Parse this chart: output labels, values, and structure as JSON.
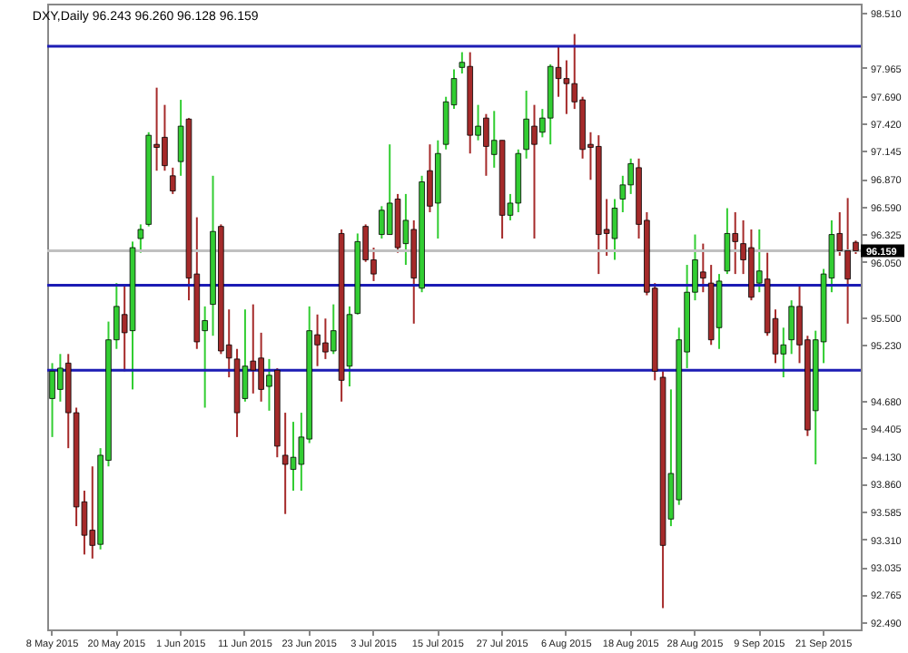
{
  "chart_data": {
    "type": "candlestick",
    "title": "DXY,Daily  96.243 96.260 96.128 96.159",
    "categories": [
      "8 May 2015",
      null,
      null,
      null,
      null,
      null,
      null,
      null,
      "20 May 2015",
      null,
      null,
      null,
      null,
      null,
      null,
      null,
      "1 Jun 2015",
      null,
      null,
      null,
      null,
      null,
      null,
      null,
      "11 Jun 2015",
      null,
      null,
      null,
      null,
      null,
      null,
      null,
      "23 Jun 2015",
      null,
      null,
      null,
      null,
      null,
      null,
      null,
      "3 Jul 2015",
      null,
      null,
      null,
      null,
      null,
      null,
      null,
      "15 Jul 2015",
      null,
      null,
      null,
      null,
      null,
      null,
      null,
      "27 Jul 2015",
      null,
      null,
      null,
      null,
      null,
      null,
      null,
      "6 Aug 2015",
      null,
      null,
      null,
      null,
      null,
      null,
      null,
      "18 Aug 2015",
      null,
      null,
      null,
      null,
      null,
      null,
      null,
      "28 Aug 2015",
      null,
      null,
      null,
      null,
      null,
      null,
      null,
      "9 Sep 2015",
      null,
      null,
      null,
      null,
      null,
      null,
      null,
      "21 Sep 2015",
      null,
      null,
      null,
      null
    ],
    "ohlc": [
      [
        94.7,
        95.05,
        94.32,
        94.97
      ],
      [
        94.79,
        95.14,
        94.67,
        95.0
      ],
      [
        95.05,
        95.14,
        94.21,
        94.56
      ],
      [
        94.56,
        94.61,
        93.44,
        93.63
      ],
      [
        93.68,
        93.79,
        93.16,
        93.35
      ],
      [
        93.4,
        94.03,
        93.12,
        93.25
      ],
      [
        93.26,
        94.21,
        93.21,
        94.14
      ],
      [
        94.09,
        95.46,
        94.03,
        95.28
      ],
      [
        95.28,
        95.84,
        95.19,
        95.61
      ],
      [
        95.53,
        95.81,
        94.97,
        95.35
      ],
      [
        95.37,
        96.25,
        94.79,
        96.19
      ],
      [
        96.28,
        96.42,
        96.14,
        96.37
      ],
      [
        96.42,
        97.33,
        96.4,
        97.3
      ],
      [
        97.21,
        97.77,
        96.95,
        97.18
      ],
      [
        97.28,
        97.6,
        96.95,
        97.0
      ],
      [
        96.9,
        96.98,
        96.72,
        96.75
      ],
      [
        97.04,
        97.65,
        96.9,
        97.39
      ],
      [
        97.46,
        97.47,
        95.67,
        95.89
      ],
      [
        95.93,
        96.49,
        95.19,
        95.26
      ],
      [
        95.37,
        95.61,
        94.61,
        95.47
      ],
      [
        95.63,
        96.9,
        95.32,
        96.35
      ],
      [
        96.4,
        96.42,
        95.14,
        95.17
      ],
      [
        95.23,
        95.58,
        94.91,
        95.1
      ],
      [
        95.09,
        95.19,
        94.32,
        94.56
      ],
      [
        94.7,
        95.58,
        94.67,
        95.02
      ],
      [
        95.07,
        95.63,
        94.75,
        94.98
      ],
      [
        95.1,
        95.35,
        94.67,
        94.79
      ],
      [
        94.82,
        95.09,
        94.58,
        94.93
      ],
      [
        94.98,
        95.0,
        94.12,
        94.23
      ],
      [
        94.14,
        94.56,
        93.56,
        94.05
      ],
      [
        94.0,
        94.47,
        93.79,
        94.12
      ],
      [
        94.05,
        94.56,
        93.79,
        94.32
      ],
      [
        94.3,
        95.61,
        94.26,
        95.37
      ],
      [
        95.33,
        95.53,
        95.02,
        95.23
      ],
      [
        95.25,
        95.49,
        95.09,
        95.16
      ],
      [
        95.17,
        95.63,
        95.14,
        95.37
      ],
      [
        96.33,
        96.37,
        94.67,
        94.88
      ],
      [
        95.02,
        95.61,
        94.82,
        95.53
      ],
      [
        95.54,
        96.33,
        95.53,
        96.25
      ],
      [
        96.4,
        96.42,
        96.05,
        96.07
      ],
      [
        96.07,
        96.19,
        95.86,
        95.93
      ],
      [
        96.32,
        96.6,
        96.28,
        96.56
      ],
      [
        96.32,
        97.21,
        96.32,
        96.63
      ],
      [
        96.67,
        96.72,
        96.14,
        96.19
      ],
      [
        96.23,
        96.72,
        96.02,
        96.46
      ],
      [
        96.37,
        96.46,
        95.44,
        95.89
      ],
      [
        95.79,
        96.9,
        95.75,
        96.84
      ],
      [
        96.95,
        97.21,
        96.54,
        96.6
      ],
      [
        96.63,
        97.25,
        96.28,
        97.12
      ],
      [
        97.21,
        97.68,
        97.16,
        97.63
      ],
      [
        97.6,
        97.95,
        97.56,
        97.86
      ],
      [
        97.97,
        98.12,
        97.91,
        98.02
      ],
      [
        97.98,
        98.12,
        97.12,
        97.3
      ],
      [
        97.3,
        97.6,
        97.25,
        97.39
      ],
      [
        97.47,
        97.51,
        96.9,
        97.19
      ],
      [
        97.11,
        97.54,
        96.98,
        97.25
      ],
      [
        97.25,
        97.25,
        96.28,
        96.51
      ],
      [
        96.51,
        96.72,
        96.46,
        96.63
      ],
      [
        96.63,
        97.16,
        96.54,
        97.12
      ],
      [
        97.16,
        97.74,
        97.07,
        97.46
      ],
      [
        97.39,
        97.6,
        96.28,
        97.21
      ],
      [
        97.33,
        97.56,
        97.28,
        97.47
      ],
      [
        97.47,
        98.0,
        97.21,
        97.98
      ],
      [
        97.97,
        98.18,
        97.68,
        97.86
      ],
      [
        97.86,
        98.04,
        97.51,
        97.81
      ],
      [
        97.81,
        98.3,
        97.56,
        97.63
      ],
      [
        97.65,
        97.68,
        97.07,
        97.16
      ],
      [
        97.21,
        97.33,
        96.86,
        97.18
      ],
      [
        97.19,
        97.3,
        95.93,
        96.32
      ],
      [
        96.37,
        96.67,
        96.11,
        96.33
      ],
      [
        96.28,
        96.67,
        96.07,
        96.58
      ],
      [
        96.67,
        96.9,
        96.54,
        96.81
      ],
      [
        96.81,
        97.07,
        96.72,
        97.02
      ],
      [
        96.98,
        97.07,
        96.28,
        96.42
      ],
      [
        96.46,
        96.54,
        95.72,
        95.75
      ],
      [
        95.79,
        95.84,
        94.88,
        94.97
      ],
      [
        94.91,
        94.97,
        92.63,
        93.25
      ],
      [
        93.51,
        94.79,
        93.44,
        93.96
      ],
      [
        93.7,
        95.4,
        93.65,
        95.28
      ],
      [
        95.16,
        96.02,
        95.0,
        95.75
      ],
      [
        95.75,
        96.32,
        95.67,
        96.07
      ],
      [
        95.95,
        96.23,
        95.75,
        95.89
      ],
      [
        95.84,
        96.02,
        95.23,
        95.28
      ],
      [
        95.4,
        95.93,
        95.19,
        95.86
      ],
      [
        95.96,
        96.58,
        95.93,
        96.33
      ],
      [
        96.33,
        96.54,
        95.93,
        96.25
      ],
      [
        96.23,
        96.46,
        95.93,
        96.07
      ],
      [
        96.19,
        96.37,
        95.67,
        95.7
      ],
      [
        95.84,
        96.37,
        95.75,
        95.96
      ],
      [
        95.88,
        96.14,
        95.32,
        95.35
      ],
      [
        95.49,
        95.58,
        95.05,
        95.14
      ],
      [
        95.14,
        95.4,
        94.91,
        95.23
      ],
      [
        95.28,
        95.67,
        95.14,
        95.61
      ],
      [
        95.61,
        95.81,
        95.05,
        95.23
      ],
      [
        95.28,
        95.32,
        94.33,
        94.39
      ],
      [
        94.58,
        95.37,
        94.05,
        95.28
      ],
      [
        95.26,
        95.98,
        95.05,
        95.93
      ],
      [
        95.89,
        96.46,
        95.75,
        96.32
      ],
      [
        96.33,
        96.54,
        96.11,
        96.16
      ],
      [
        96.16,
        96.68,
        95.44,
        95.88
      ],
      [
        96.243,
        96.26,
        96.128,
        96.159
      ]
    ],
    "colors": [
      "#32cd32",
      "#32cd32",
      "#a52a2a",
      "#a52a2a",
      "#a52a2a",
      "#a52a2a",
      "#32cd32",
      "#32cd32",
      "#32cd32",
      "#a52a2a",
      "#32cd32",
      "#32cd32",
      "#32cd32",
      "#a52a2a",
      "#a52a2a",
      "#a52a2a",
      "#32cd32",
      "#a52a2a",
      "#a52a2a",
      "#32cd32",
      "#32cd32",
      "#a52a2a",
      "#a52a2a",
      "#a52a2a",
      "#32cd32",
      "#a52a2a",
      "#a52a2a",
      "#32cd32",
      "#a52a2a",
      "#a52a2a",
      "#32cd32",
      "#32cd32",
      "#32cd32",
      "#a52a2a",
      "#a52a2a",
      "#32cd32",
      "#a52a2a",
      "#32cd32",
      "#32cd32",
      "#a52a2a",
      "#a52a2a",
      "#32cd32",
      "#32cd32",
      "#a52a2a",
      "#32cd32",
      "#a52a2a",
      "#32cd32",
      "#a52a2a",
      "#32cd32",
      "#32cd32",
      "#32cd32",
      "#32cd32",
      "#a52a2a",
      "#32cd32",
      "#a52a2a",
      "#32cd32",
      "#a52a2a",
      "#32cd32",
      "#32cd32",
      "#32cd32",
      "#a52a2a",
      "#32cd32",
      "#32cd32",
      "#a52a2a",
      "#a52a2a",
      "#a52a2a",
      "#a52a2a",
      "#a52a2a",
      "#a52a2a",
      "#a52a2a",
      "#32cd32",
      "#32cd32",
      "#32cd32",
      "#a52a2a",
      "#a52a2a",
      "#a52a2a",
      "#a52a2a",
      "#32cd32",
      "#32cd32",
      "#32cd32",
      "#32cd32",
      "#a52a2a",
      "#a52a2a",
      "#32cd32",
      "#32cd32",
      "#a52a2a",
      "#a52a2a",
      "#a52a2a",
      "#32cd32",
      "#a52a2a",
      "#a52a2a",
      "#32cd32",
      "#32cd32",
      "#a52a2a",
      "#a52a2a",
      "#32cd32",
      "#32cd32",
      "#32cd32",
      "#a52a2a",
      "#a52a2a",
      "#a52a2a"
    ],
    "ylim": [
      92.42,
      98.6
    ],
    "yticks": [
      {
        "value": 92.49,
        "label": "92.490"
      },
      {
        "value": 92.765,
        "label": "92.765"
      },
      {
        "value": 93.035,
        "label": "93.035"
      },
      {
        "value": 93.31,
        "label": "93.310"
      },
      {
        "value": 93.585,
        "label": "93.585"
      },
      {
        "value": 93.86,
        "label": "93.860"
      },
      {
        "value": 94.13,
        "label": "94.130"
      },
      {
        "value": 94.405,
        "label": "94.405"
      },
      {
        "value": 94.68,
        "label": "94.680"
      },
      {
        "value": 95.23,
        "label": "95.230"
      },
      {
        "value": 95.5,
        "label": "95.500"
      },
      {
        "value": 96.05,
        "label": "96.050"
      },
      {
        "value": 96.325,
        "label": "96.325"
      },
      {
        "value": 96.59,
        "label": "96.590"
      },
      {
        "value": 96.87,
        "label": "96.870"
      },
      {
        "value": 97.145,
        "label": "97.145"
      },
      {
        "value": 97.42,
        "label": "97.420"
      },
      {
        "value": 97.69,
        "label": "97.690"
      },
      {
        "value": 97.965,
        "label": "97.965"
      },
      {
        "value": 98.51,
        "label": "98.510"
      }
    ],
    "ref_lines": [
      {
        "axis": "y",
        "value": 98.18,
        "color": "#1c1cb4"
      },
      {
        "axis": "y",
        "value": 95.82,
        "color": "#1c1cb4"
      },
      {
        "axis": "y",
        "value": 94.98,
        "color": "#1c1cb4"
      },
      {
        "axis": "y",
        "value": 96.159,
        "color": "#c0c0c0",
        "label": "96.159"
      }
    ]
  }
}
